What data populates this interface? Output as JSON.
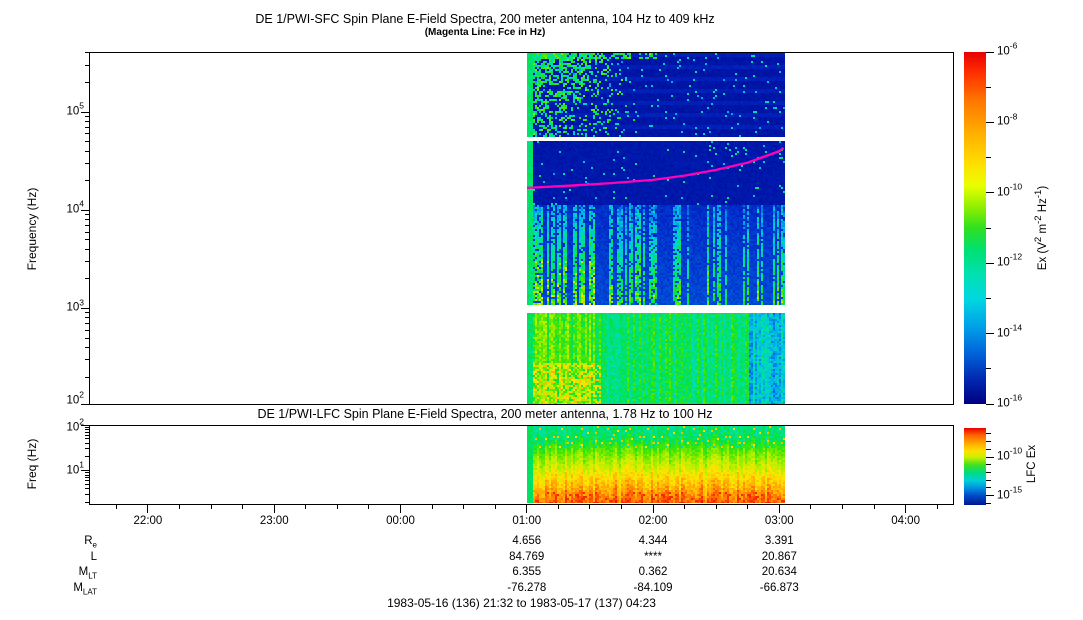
{
  "header": {
    "title": "DE 1/PWI-SFC  Spin Plane E-Field Spectra, 200 meter antenna, 104 Hz to 409 kHz",
    "subtitle": "(Magenta Line: Fce in Hz)"
  },
  "footer": {
    "time_range": "1983-05-16 (136) 21:32 to 1983-05-17 (137) 04:23"
  },
  "time_axis": {
    "start": "21:32",
    "end": "04:23",
    "major_ticks": [
      "22:00",
      "23:00",
      "00:00",
      "01:00",
      "02:00",
      "03:00",
      "04:00"
    ],
    "minor_tick_interval_min": 15
  },
  "ephemeris": {
    "row_labels": [
      "R_e",
      "L",
      "M_LT",
      "M_LAT"
    ],
    "columns": [
      {
        "time": "01:00",
        "values": [
          "4.656",
          "84.769",
          "6.355",
          "-76.278"
        ]
      },
      {
        "time": "02:00",
        "values": [
          "4.344",
          "****",
          "0.362",
          "-84.109"
        ]
      },
      {
        "time": "03:00",
        "values": [
          "3.391",
          "20.867",
          "20.634",
          "-66.873"
        ]
      }
    ]
  },
  "chart_data": [
    {
      "type": "heatmap",
      "title": "DE 1/PWI-SFC  Spin Plane E-Field Spectra, 200 meter antenna, 104 Hz to 409 kHz",
      "subtitle": "(Magenta Line: Fce in Hz)",
      "ylabel": "Frequency (Hz)",
      "yscale": "log",
      "ylim_hz": [
        104,
        409000
      ],
      "ytick_labels": [
        "10^2",
        "10^3",
        "10^4",
        "10^5"
      ],
      "x_range_time": [
        "21:32",
        "04:23"
      ],
      "xtick_labels": [
        "22:00",
        "23:00",
        "00:00",
        "01:00",
        "02:00",
        "03:00",
        "04:00"
      ],
      "data_extent_time": [
        "01:00",
        "03:02"
      ],
      "colorbar": {
        "label": "Ex (V^2 m^-2 Hz^-1)",
        "tick_labels": [
          "10^-6",
          "10^-8",
          "10^-10",
          "10^-12",
          "10^-14",
          "10^-16"
        ],
        "decade_range": [
          -6,
          -16
        ],
        "gradient": [
          [
            0,
            "#E80000"
          ],
          [
            0.06,
            "#FF3000"
          ],
          [
            0.14,
            "#FF7800"
          ],
          [
            0.24,
            "#FFB400"
          ],
          [
            0.32,
            "#FFE000"
          ],
          [
            0.38,
            "#E8FF00"
          ],
          [
            0.44,
            "#90F000"
          ],
          [
            0.5,
            "#30E020"
          ],
          [
            0.56,
            "#00E070"
          ],
          [
            0.63,
            "#00E0B0"
          ],
          [
            0.7,
            "#00D8E0"
          ],
          [
            0.78,
            "#00A0E8"
          ],
          [
            0.86,
            "#0060D8"
          ],
          [
            0.93,
            "#0028B0"
          ],
          [
            1,
            "#000080"
          ]
        ]
      },
      "fce_line": {
        "label": "Fce",
        "color": "#FF00BB",
        "points": [
          {
            "time": "01:00",
            "hz": 16900
          },
          {
            "time": "01:20",
            "hz": 17800
          },
          {
            "time": "01:40",
            "hz": 18900
          },
          {
            "time": "02:00",
            "hz": 20400
          },
          {
            "time": "02:15",
            "hz": 22500
          },
          {
            "time": "02:30",
            "hz": 25800
          },
          {
            "time": "02:45",
            "hz": 30500
          },
          {
            "time": "03:00",
            "hz": 40000
          },
          {
            "time": "03:02",
            "hz": 43000
          }
        ]
      },
      "features": [
        {
          "freq_range_hz": [
            45000,
            409000
          ],
          "time_range": [
            "01:00",
            "01:45"
          ],
          "appearance": "green-cyan patches",
          "power": "~1e-12 to 1e-10"
        },
        {
          "freq_range_hz": [
            45000,
            409000
          ],
          "time_range": [
            "01:45",
            "03:02"
          ],
          "appearance": "dark blue with sparse cyan specks and horizontal banding",
          "power": "~1e-15 to 1e-16"
        },
        {
          "freq_range_hz": [
            20000,
            45000
          ],
          "time_range": [
            "01:00",
            "03:02"
          ],
          "appearance": "dark blue, sparse specks, Fce magenta line crosses here",
          "power": "~1e-15"
        },
        {
          "freq_range_hz": [
            1000,
            20000
          ],
          "time_range": [
            "01:00",
            "03:02"
          ],
          "appearance": "vertical bursty cyan-green streaks on blue, denser before 02:00",
          "power": "~1e-13 to 1e-11"
        },
        {
          "freq_range_hz": [
            104,
            900
          ],
          "time_range": [
            "01:00",
            "03:02"
          ],
          "appearance": "continuous cyan-green block, yellow-orange patches before 01:45",
          "power": "~1e-12 to 1e-9"
        },
        {
          "freq_range_hz": [
            45000,
            50000
          ],
          "appearance": "white horizontal data gap"
        },
        {
          "freq_range_hz": [
            900,
            1000
          ],
          "appearance": "white horizontal data gap"
        }
      ]
    },
    {
      "type": "heatmap",
      "title": "DE 1/PWI-LFC  Spin Plane E-Field Spectra, 200 meter antenna, 1.78 Hz to 100 Hz",
      "ylabel": "Freq (Hz)",
      "yscale": "log",
      "ylim_hz": [
        1.78,
        100
      ],
      "ytick_labels": [
        "10^1",
        "10^2"
      ],
      "x_range_time": [
        "21:32",
        "04:23"
      ],
      "data_extent_time": [
        "01:00",
        "03:02"
      ],
      "colorbar": {
        "label": "LFC Ex",
        "tick_labels": [
          "10^-10",
          "10^-15"
        ],
        "decade_range": [
          -6.3,
          -16.1
        ],
        "gradient": [
          [
            0,
            "#E80000"
          ],
          [
            0.09,
            "#FF6000"
          ],
          [
            0.2,
            "#FFAA00"
          ],
          [
            0.3,
            "#FFE000"
          ],
          [
            0.38,
            "#C8F000"
          ],
          [
            0.48,
            "#40E020"
          ],
          [
            0.58,
            "#00DC80"
          ],
          [
            0.68,
            "#00D0D8"
          ],
          [
            0.78,
            "#0090E0"
          ],
          [
            0.88,
            "#0048C8"
          ],
          [
            1,
            "#001890"
          ]
        ]
      },
      "features": [
        {
          "freq_range_hz": [
            30,
            100
          ],
          "appearance": "green-cyan band with vertical variation",
          "power": "~1e-11"
        },
        {
          "freq_range_hz": [
            8,
            30
          ],
          "appearance": "yellow band",
          "power": "~1e-9"
        },
        {
          "freq_range_hz": [
            1.78,
            8
          ],
          "appearance": "orange to red band, strongest at lowest frequencies",
          "power": "~1e-7"
        }
      ]
    }
  ]
}
